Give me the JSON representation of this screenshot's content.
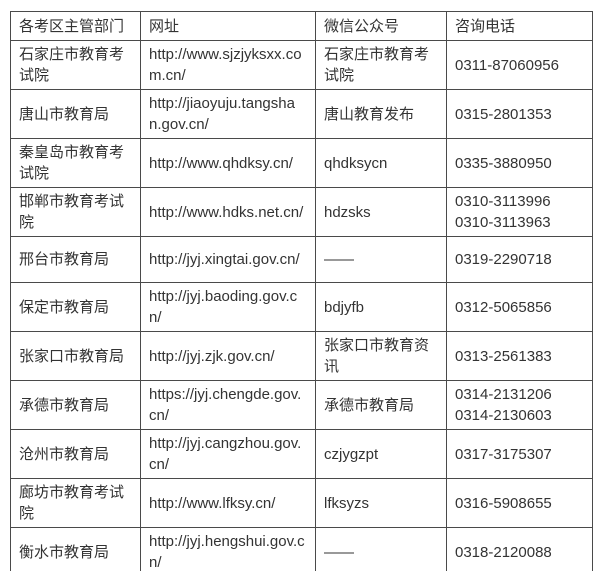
{
  "page": {
    "background_color": "#ffffff"
  },
  "table": {
    "border_color": "#4a4a4a",
    "text_color": "#333333",
    "headers": [
      "各考区主管部门",
      "网址",
      "微信公众号",
      "咨询电话"
    ],
    "rows": [
      {
        "dept": "石家庄市教育考试院",
        "url": "http://www.sjzjyksxx.com.cn/",
        "wechat": "石家庄市教育考试院",
        "phones": [
          "0311-87060956"
        ]
      },
      {
        "dept": "唐山市教育局",
        "url": "http://jiaoyuju.tangshan.gov.cn/",
        "wechat": "唐山教育发布",
        "phones": [
          "0315-2801353"
        ]
      },
      {
        "dept": "秦皇岛市教育考试院",
        "url": "http://www.qhdksy.cn/",
        "wechat": "qhdksycn",
        "phones": [
          "0335-3880950"
        ]
      },
      {
        "dept": "邯郸市教育考试院",
        "url": "http://www.hdks.net.cn/",
        "wechat": "hdzsks",
        "phones": [
          "0310-3113996",
          "0310-3113963"
        ]
      },
      {
        "dept": "邢台市教育局",
        "url": "http://jyj.xingtai.gov.cn/",
        "wechat": "——",
        "phones": [
          "0319-2290718"
        ]
      },
      {
        "dept": "保定市教育局",
        "url": "http://jyj.baoding.gov.cn/",
        "wechat": "bdjyfb",
        "phones": [
          "0312-5065856"
        ]
      },
      {
        "dept": "张家口市教育局",
        "url": "http://jyj.zjk.gov.cn/",
        "wechat": "张家口市教育资讯",
        "phones": [
          "0313-2561383"
        ]
      },
      {
        "dept": "承德市教育局",
        "url": "https://jyj.chengde.gov.cn/",
        "wechat": "承德市教育局",
        "phones": [
          "0314-2131206",
          "0314-2130603"
        ]
      },
      {
        "dept": "沧州市教育局",
        "url": "http://jyj.cangzhou.gov.cn/",
        "wechat": "czjygzpt",
        "phones": [
          "0317-3175307"
        ]
      },
      {
        "dept": "廊坊市教育考试院",
        "url": "http://www.lfksy.cn/",
        "wechat": "lfksyzs",
        "phones": [
          "0316-5908655"
        ]
      },
      {
        "dept": "衡水市教育局",
        "url": "http://jyj.hengshui.gov.cn/",
        "wechat": "——",
        "phones": [
          "0318-2120088"
        ]
      }
    ]
  }
}
